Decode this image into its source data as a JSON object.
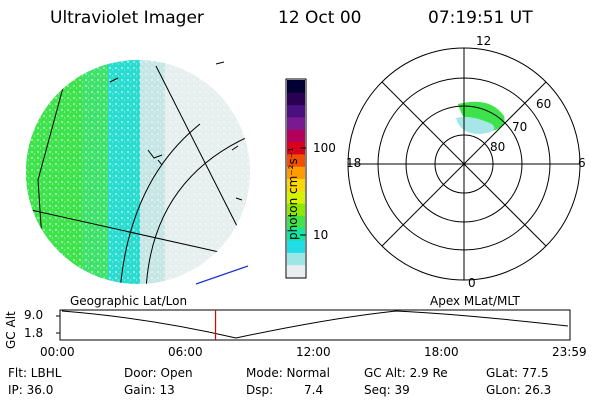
{
  "header": {
    "instrument": "Ultraviolet Imager",
    "date": "12 Oct 00",
    "time": "07:19:51 UT"
  },
  "colorbar": {
    "unit_label": "photon cm⁻²s⁻¹",
    "ticks": [
      "100",
      "10"
    ],
    "colors": [
      "#000033",
      "#2a0055",
      "#4a1080",
      "#7a1a90",
      "#b3005a",
      "#d8001a",
      "#f05000",
      "#ff9d00",
      "#ffd800",
      "#d6f200",
      "#8ee800",
      "#42e24a",
      "#12e6a2",
      "#22dce6",
      "#9ce6e6",
      "#e8eeee"
    ]
  },
  "polar_plot": {
    "mlt_labels": {
      "top": "12",
      "right": "6",
      "bottom": "0",
      "left": "18"
    },
    "lat_labels": [
      "60",
      "70",
      "80"
    ]
  },
  "plot_labels": {
    "left": "Geographic Lat/Lon",
    "right": "Apex MLat/MLT"
  },
  "altitude_plot": {
    "ylabel": "GC Alt",
    "yticks": [
      "9.0",
      "1.8"
    ],
    "xticks": [
      "00:00",
      "06:00",
      "12:00",
      "18:00",
      "23:59"
    ],
    "current_time_fraction": 0.305
  },
  "info": {
    "filter": "Flt: LBHL",
    "door": "Door: Open",
    "mode": "Mode: Normal",
    "gc_alt": "GC Alt: 2.9 Re",
    "glat": "GLat: 77.5",
    "ip": "IP: 36.0",
    "gain": "Gain: 13",
    "dsp_label": "Dsp:",
    "dsp_value": "7.4",
    "seq": "Seq: 39",
    "glon": "GLon: 26.3"
  }
}
